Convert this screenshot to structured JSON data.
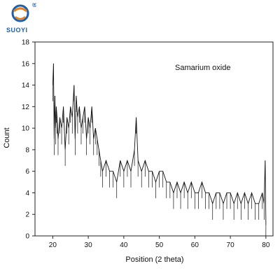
{
  "brand": {
    "name": "SUOYI",
    "mark": "®",
    "colors": {
      "primary": "#1f5fa8",
      "accent": "#e8821e"
    }
  },
  "chart_data": {
    "type": "line",
    "xlabel": "Position (2 theta)",
    "ylabel": "Count",
    "annotation": "Samarium oxide",
    "xlim": [
      15,
      82
    ],
    "ylim": [
      0,
      18
    ],
    "xticks": [
      20,
      30,
      40,
      50,
      60,
      70,
      80
    ],
    "yticks": [
      0,
      2,
      4,
      6,
      8,
      10,
      12,
      14,
      16,
      18
    ],
    "grid": false,
    "series": [
      {
        "x": [
          20.0,
          20.2,
          20.4,
          20.6,
          20.8,
          21.0,
          21.2,
          21.5,
          22.0,
          22.5,
          23.0,
          23.5,
          24.0,
          24.5,
          25.0,
          25.5,
          26.0,
          26.3,
          26.6,
          27.0,
          27.5,
          28.0,
          28.5,
          29.0,
          29.5,
          30.0,
          30.5,
          31.0,
          31.5,
          32.0,
          32.5,
          33.0,
          33.5,
          34.0,
          35.0,
          36.0,
          37.0,
          38.0,
          39.0,
          40.0,
          41.0,
          42.0,
          43.0,
          43.5,
          44.0,
          45.0,
          46.0,
          47.0,
          48.0,
          49.0,
          50.0,
          51.0,
          52.0,
          53.0,
          54.0,
          55.0,
          56.0,
          57.0,
          58.0,
          59.0,
          60.0,
          61.0,
          62.0,
          63.0,
          64.0,
          65.0,
          66.0,
          67.0,
          68.0,
          69.0,
          70.0,
          71.0,
          72.0,
          73.0,
          74.0,
          75.0,
          76.0,
          77.0,
          78.0,
          79.0,
          79.5,
          79.8,
          80.0
        ],
        "y": [
          14,
          16,
          9,
          13,
          10,
          12,
          11,
          9,
          11,
          10,
          12,
          8,
          11,
          10,
          12,
          11,
          14,
          9,
          13,
          11,
          12,
          10,
          11,
          12,
          9,
          11,
          10,
          12,
          9,
          10,
          9,
          8,
          7,
          6,
          7,
          6,
          6,
          5,
          7,
          6,
          7,
          6,
          8,
          11,
          7,
          6,
          7,
          6,
          6,
          5,
          6,
          6,
          5,
          5,
          4,
          5,
          4,
          5,
          4,
          5,
          4,
          4,
          5,
          4,
          4,
          3,
          4,
          4,
          3,
          4,
          4,
          3,
          4,
          3,
          4,
          3,
          4,
          3,
          3,
          4,
          3,
          7,
          1
        ]
      }
    ]
  }
}
